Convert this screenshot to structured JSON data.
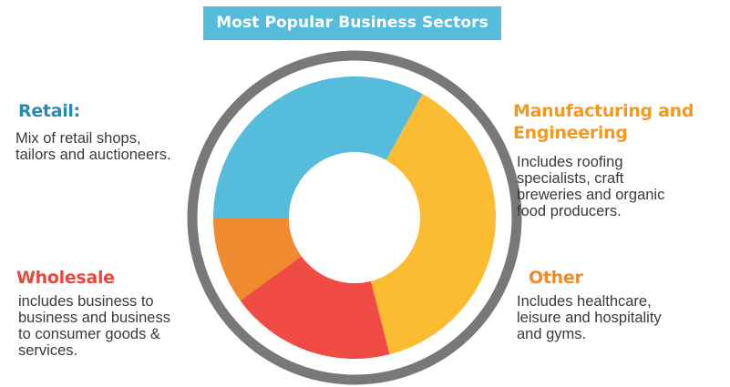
{
  "title": "Most Popular Business Sectors",
  "chart_data": {
    "type": "donut",
    "title": "Most Popular Business Sectors",
    "colors": {
      "ring": "#787878",
      "title_bg": "#56bcdc"
    },
    "slices": [
      {
        "name": "Retail",
        "value": 33,
        "color": "#56bcdc"
      },
      {
        "name": "Manufacturing and Engineering",
        "value": 38,
        "color": "#fcbc31"
      },
      {
        "name": "Wholesale",
        "value": 19,
        "color": "#ef4a43"
      },
      {
        "name": "Other",
        "value": 10,
        "color": "#ef8a2e"
      }
    ]
  },
  "sectors": {
    "retail": {
      "heading": "Retail:",
      "description": "Mix of retail shops,\ntailors and auctioneers.",
      "color": "#2a8aac"
    },
    "manufacturing": {
      "heading": "Manufacturing and\nEngineering",
      "description": "Includes roofing\nspecialists, craft\nbreweries and organic\nfood producers.",
      "color": "#f29a1f"
    },
    "wholesale": {
      "heading": "Wholesale",
      "description": "includes business to\nbusiness and business\nto consumer goods &\nservices.",
      "color": "#e8483c"
    },
    "other": {
      "heading": "Other",
      "description": "Includes healthcare,\nleisure and hospitality\nand gyms.",
      "color": "#f08a2e"
    }
  }
}
